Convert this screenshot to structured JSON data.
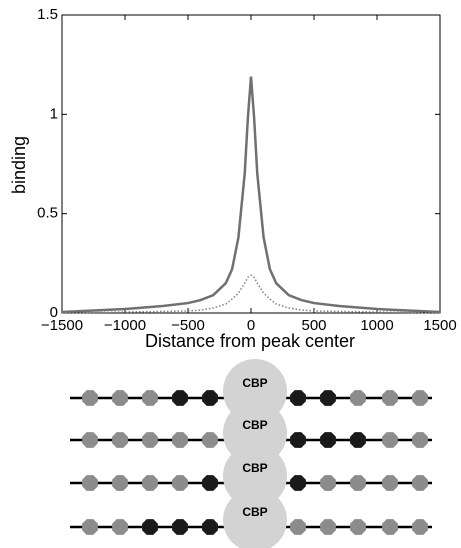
{
  "chart_data": {
    "type": "line",
    "x_label": "Distance from peak center",
    "y_label": "binding",
    "x": [
      -1500,
      -1000,
      -700,
      -500,
      -400,
      -300,
      -200,
      -150,
      -100,
      -50,
      -25,
      0,
      25,
      50,
      100,
      150,
      200,
      300,
      400,
      500,
      700,
      1000,
      1500
    ],
    "series": [
      {
        "color": "#707070",
        "style": "solid",
        "values": [
          0.005,
          0.02,
          0.035,
          0.05,
          0.065,
          0.09,
          0.15,
          0.22,
          0.38,
          0.7,
          0.98,
          1.19,
          0.98,
          0.7,
          0.38,
          0.22,
          0.15,
          0.09,
          0.065,
          0.05,
          0.035,
          0.02,
          0.005
        ]
      },
      {
        "color": "#808080",
        "style": "dotted",
        "values": [
          0,
          0.005,
          0.008,
          0.01,
          0.015,
          0.025,
          0.045,
          0.07,
          0.1,
          0.15,
          0.18,
          0.19,
          0.18,
          0.15,
          0.1,
          0.07,
          0.045,
          0.025,
          0.015,
          0.01,
          0.008,
          0.005,
          0
        ]
      }
    ],
    "xlim": [
      -1500,
      1500
    ],
    "xticks": [
      {
        "value": -1500,
        "label": "−1500"
      },
      {
        "value": -1000,
        "label": "−1000"
      },
      {
        "value": -500,
        "label": "−500"
      },
      0,
      500,
      1000,
      1500
    ],
    "ylim": [
      0,
      1.5
    ],
    "yticks": [
      0,
      0.5,
      1,
      1.5
    ],
    "grid": false
  },
  "diagram": {
    "center_color": "#d3d3d3",
    "rows": [
      {
        "label": "CBP",
        "left": [
          "#8c8c8c",
          "#8c8c8c",
          "#8c8c8c",
          "#1a1a1a",
          "#1a1a1a"
        ],
        "right": [
          "#1a1a1a",
          "#1a1a1a",
          "#8c8c8c",
          "#8c8c8c",
          "#8c8c8c"
        ]
      },
      {
        "label": "CBP",
        "left": [
          "#8c8c8c",
          "#8c8c8c",
          "#8c8c8c",
          "#8c8c8c",
          "#8c8c8c"
        ],
        "right": [
          "#1a1a1a",
          "#1a1a1a",
          "#1a1a1a",
          "#8c8c8c",
          "#8c8c8c"
        ]
      },
      {
        "label": "CBP",
        "left": [
          "#8c8c8c",
          "#8c8c8c",
          "#8c8c8c",
          "#8c8c8c",
          "#1a1a1a"
        ],
        "right": [
          "#1a1a1a",
          "#8c8c8c",
          "#8c8c8c",
          "#8c8c8c",
          "#8c8c8c"
        ]
      },
      {
        "label": "CBP",
        "left": [
          "#8c8c8c",
          "#8c8c8c",
          "#1a1a1a",
          "#1a1a1a",
          "#1a1a1a"
        ],
        "right": [
          "#8c8c8c",
          "#8c8c8c",
          "#8c8c8c",
          "#8c8c8c",
          "#8c8c8c"
        ]
      }
    ]
  }
}
